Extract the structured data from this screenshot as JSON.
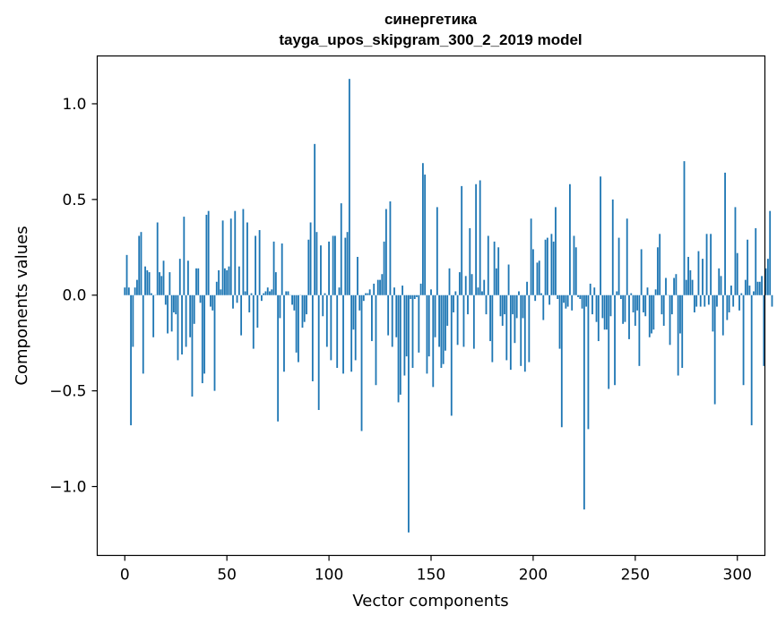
{
  "chart_data": {
    "type": "bar",
    "title": "синергетика",
    "subtitle": "tayga_upos_skipgram_300_2_2019 model",
    "xlabel": "Vector components",
    "ylabel": "Components values",
    "xlim": [
      -13.5,
      313.5
    ],
    "ylim": [
      -1.36,
      1.25
    ],
    "xticks": [
      0,
      50,
      100,
      150,
      200,
      250,
      300
    ],
    "xtick_labels": [
      "0",
      "50",
      "100",
      "150",
      "200",
      "250",
      "300"
    ],
    "yticks": [
      -1.0,
      -0.5,
      0.0,
      0.5,
      1.0
    ],
    "ytick_labels": [
      "−1.0",
      "−0.5",
      "0.0",
      "0.5",
      "1.0"
    ],
    "grid": false,
    "bar_color": "#1f77b4",
    "values": [
      0.04,
      0.21,
      0.04,
      -0.68,
      -0.27,
      0.04,
      0.08,
      0.31,
      0.33,
      -0.41,
      0.15,
      0.13,
      0.12,
      0.01,
      -0.22,
      0.0,
      0.38,
      0.12,
      0.1,
      0.18,
      -0.05,
      -0.2,
      0.12,
      -0.19,
      -0.09,
      -0.1,
      -0.34,
      0.19,
      -0.31,
      0.41,
      -0.27,
      0.18,
      -0.22,
      -0.53,
      -0.15,
      0.14,
      0.14,
      -0.04,
      -0.46,
      -0.41,
      0.42,
      0.44,
      -0.06,
      -0.08,
      -0.5,
      0.07,
      0.13,
      0.03,
      0.39,
      0.14,
      0.13,
      0.15,
      0.4,
      -0.07,
      0.44,
      -0.04,
      0.15,
      -0.21,
      0.45,
      0.02,
      0.38,
      -0.09,
      0.01,
      -0.28,
      0.31,
      -0.17,
      0.34,
      -0.03,
      0.01,
      0.02,
      0.04,
      0.02,
      0.03,
      0.28,
      0.12,
      -0.66,
      -0.12,
      0.27,
      -0.4,
      0.02,
      0.02,
      0.0,
      -0.05,
      -0.08,
      -0.3,
      -0.35,
      0.0,
      -0.17,
      -0.14,
      -0.1,
      0.29,
      0.38,
      -0.45,
      0.79,
      0.33,
      -0.6,
      0.26,
      -0.11,
      0.01,
      -0.27,
      0.28,
      -0.34,
      0.31,
      0.31,
      -0.38,
      0.04,
      0.48,
      -0.41,
      0.3,
      0.33,
      1.13,
      -0.4,
      -0.18,
      -0.34,
      0.2,
      -0.08,
      -0.71,
      -0.03,
      0.01,
      0.01,
      0.03,
      -0.24,
      0.06,
      -0.47,
      0.08,
      0.08,
      0.11,
      0.28,
      0.45,
      -0.21,
      0.49,
      -0.27,
      0.04,
      -0.22,
      -0.56,
      -0.52,
      0.05,
      -0.42,
      -0.32,
      -1.24,
      -0.02,
      -0.38,
      -0.02,
      -0.01,
      -0.3,
      0.06,
      0.69,
      0.63,
      -0.41,
      -0.32,
      0.03,
      -0.48,
      -0.22,
      0.46,
      -0.27,
      -0.38,
      -0.36,
      -0.29,
      -0.16,
      0.14,
      -0.63,
      -0.09,
      0.02,
      -0.26,
      0.12,
      0.57,
      -0.27,
      0.1,
      -0.1,
      0.35,
      0.11,
      -0.28,
      0.58,
      0.04,
      0.6,
      0.02,
      0.08,
      -0.1,
      0.31,
      -0.24,
      -0.35,
      0.28,
      0.14,
      0.25,
      -0.11,
      -0.16,
      -0.1,
      -0.34,
      0.16,
      -0.39,
      -0.1,
      -0.25,
      -0.12,
      0.02,
      -0.37,
      -0.12,
      -0.4,
      0.07,
      -0.35,
      0.4,
      0.24,
      -0.03,
      0.17,
      0.18,
      0.01,
      -0.13,
      0.29,
      0.3,
      -0.05,
      0.32,
      0.28,
      0.46,
      -0.02,
      -0.28,
      -0.69,
      -0.04,
      -0.07,
      -0.06,
      0.58,
      -0.08,
      0.31,
      0.25,
      -0.01,
      -0.02,
      -0.07,
      -1.12,
      -0.06,
      -0.7,
      0.06,
      -0.1,
      0.04,
      -0.14,
      -0.24,
      0.62,
      -0.12,
      -0.18,
      -0.18,
      -0.49,
      -0.11,
      0.5,
      -0.47,
      0.02,
      0.3,
      -0.02,
      -0.15,
      -0.14,
      0.4,
      -0.23,
      0.01,
      -0.09,
      -0.16,
      -0.08,
      -0.37,
      0.24,
      -0.09,
      -0.11,
      0.04,
      -0.22,
      -0.2,
      -0.18,
      0.03,
      0.25,
      0.32,
      -0.1,
      -0.16,
      0.09,
      0.0,
      -0.26,
      -0.1,
      0.09,
      0.11,
      -0.42,
      -0.2,
      -0.38,
      0.7,
      0.08,
      0.2,
      0.13,
      0.08,
      -0.09,
      -0.06,
      0.23,
      -0.06,
      0.19,
      -0.06,
      0.32,
      -0.05,
      0.32,
      -0.19,
      -0.57,
      -0.06,
      0.14,
      0.1,
      -0.21,
      0.64,
      -0.13,
      -0.09,
      0.05,
      -0.06,
      0.46,
      0.22,
      -0.08,
      0.01,
      -0.47,
      0.08,
      0.29,
      0.05,
      -0.68,
      0.02,
      0.35,
      0.07,
      0.07,
      0.1,
      -0.37,
      0.14,
      0.19,
      0.44,
      -0.06
    ]
  }
}
